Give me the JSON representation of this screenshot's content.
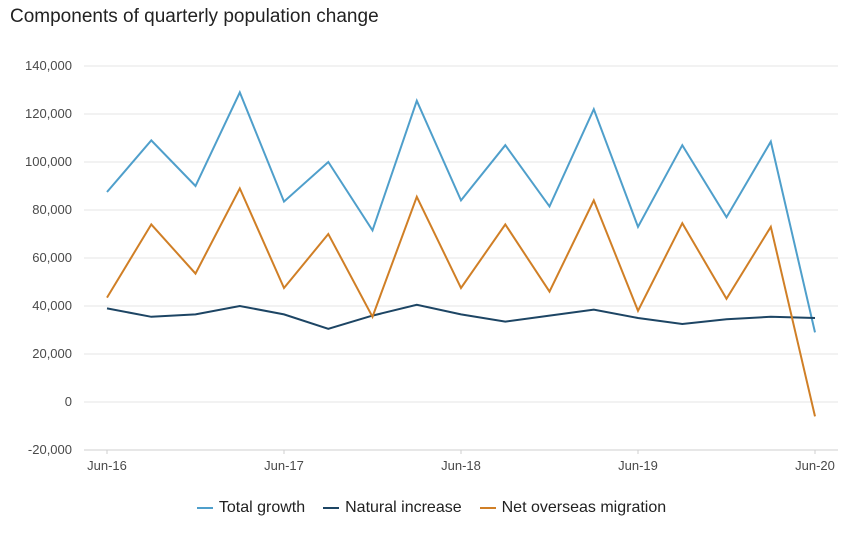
{
  "chart_data": {
    "type": "line",
    "title": "Components of quarterly population change",
    "xlabel": "",
    "ylabel": "",
    "ylim": [
      -20000,
      140000
    ],
    "y_ticks": [
      -20000,
      0,
      20000,
      40000,
      60000,
      80000,
      100000,
      120000,
      140000
    ],
    "y_tick_labels": [
      "-20,000",
      "0",
      "20,000",
      "40,000",
      "60,000",
      "80,000",
      "100,000",
      "120,000",
      "140,000"
    ],
    "x": [
      "Jun-16",
      "Sep-16",
      "Dec-16",
      "Mar-17",
      "Jun-17",
      "Sep-17",
      "Dec-17",
      "Mar-18",
      "Jun-18",
      "Sep-18",
      "Dec-18",
      "Mar-19",
      "Jun-19",
      "Sep-19",
      "Dec-19",
      "Mar-20",
      "Jun-20"
    ],
    "x_tick_labels": [
      {
        "index": 0,
        "label": "Jun-16"
      },
      {
        "index": 4,
        "label": "Jun-17"
      },
      {
        "index": 8,
        "label": "Jun-18"
      },
      {
        "index": 12,
        "label": "Jun-19"
      },
      {
        "index": 16,
        "label": "Jun-20"
      }
    ],
    "grid": true,
    "legend_position": "bottom-center",
    "series": [
      {
        "name": "Total growth",
        "color": "#4f9fcb",
        "values": [
          87500,
          109000,
          90000,
          129000,
          83500,
          100000,
          71500,
          125500,
          84000,
          107000,
          81500,
          122000,
          73000,
          107000,
          77000,
          108500,
          29000
        ]
      },
      {
        "name": "Natural increase",
        "color": "#1d4564",
        "values": [
          39000,
          35500,
          36500,
          40000,
          36500,
          30500,
          36000,
          40500,
          36500,
          33500,
          36000,
          38500,
          35000,
          32500,
          34500,
          35500,
          35000
        ]
      },
      {
        "name": "Net overseas migration",
        "color": "#d07f26",
        "values": [
          43500,
          74000,
          53500,
          89000,
          47500,
          70000,
          35500,
          85500,
          47500,
          74000,
          46000,
          84000,
          38000,
          74500,
          43000,
          73000,
          -6000
        ]
      }
    ]
  }
}
